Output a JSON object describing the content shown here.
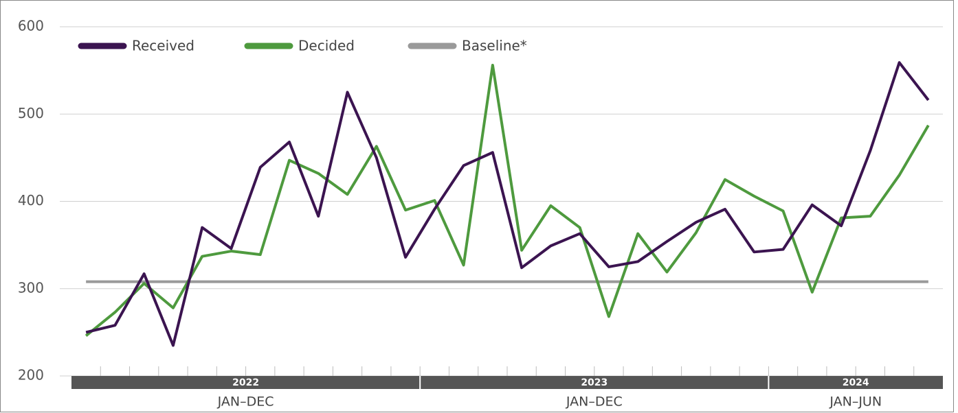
{
  "chart_data": {
    "type": "line",
    "categories": [
      null,
      null,
      null,
      null,
      null,
      null,
      null,
      null,
      null,
      null,
      null,
      null,
      null,
      null,
      null,
      null,
      null,
      null,
      null,
      null,
      null,
      null,
      null,
      null,
      null,
      null,
      null,
      null,
      null,
      null
    ],
    "x_groups": [
      {
        "label": "2022",
        "sublabel": "JAN–DEC",
        "size": 12
      },
      {
        "label": "2023",
        "sublabel": "JAN–DEC",
        "size": 12
      },
      {
        "label": "2024",
        "sublabel": "JAN–JUN",
        "size": 6
      }
    ],
    "series": [
      {
        "name": "Received",
        "color": "#3b1450",
        "values": [
          250,
          258,
          317,
          235,
          370,
          346,
          439,
          468,
          383,
          525,
          450,
          336,
          391,
          441,
          456,
          324,
          349,
          363,
          325,
          331,
          354,
          376,
          391,
          342,
          345,
          396,
          372,
          458,
          559,
          516
        ]
      },
      {
        "name": "Decided",
        "color": "#4e9a3e",
        "values": [
          246,
          273,
          306,
          278,
          337,
          343,
          339,
          447,
          432,
          408,
          463,
          390,
          401,
          327,
          556,
          344,
          395,
          370,
          268,
          363,
          319,
          364,
          425,
          406,
          389,
          296,
          381,
          383,
          430,
          487
        ]
      },
      {
        "name": "Baseline*",
        "color": "#9a9a9a",
        "values": [
          308,
          308,
          308,
          308,
          308,
          308,
          308,
          308,
          308,
          308,
          308,
          308,
          308,
          308,
          308,
          308,
          308,
          308,
          308,
          308,
          308,
          308,
          308,
          308,
          308,
          308,
          308,
          308,
          308,
          308
        ]
      }
    ],
    "ylim": [
      200,
      600
    ],
    "yticks": [
      200,
      300,
      400,
      500,
      600
    ],
    "grid": true,
    "legend": "top-left"
  }
}
